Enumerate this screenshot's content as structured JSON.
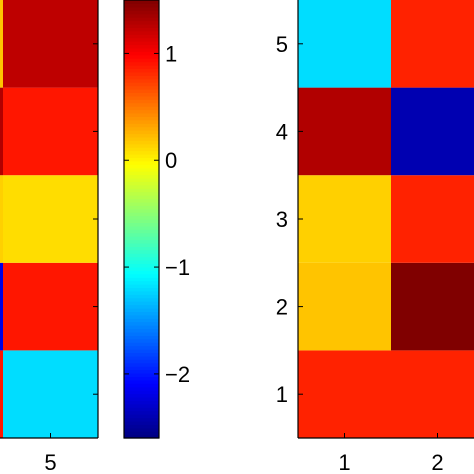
{
  "chart_data": [
    {
      "type": "heatmap",
      "description_of_view": "left heatmap, only the right-most column is visible",
      "x_tick_labels": [
        "5"
      ],
      "columns": [
        {
          "x": 5,
          "values_bottom_to_top": [
            -1.2,
            0.9,
            0.1,
            0.9,
            1.25
          ]
        }
      ],
      "left_sliver_values_bottom_to_top": [
        0.9,
        -2.2,
        0.15,
        1.3,
        0.2
      ],
      "grid": false
    },
    {
      "type": "colorbar",
      "colormap": "jet",
      "range": [
        -2.6,
        1.5
      ],
      "tick_values": [
        1,
        0,
        -1,
        -2
      ],
      "tick_labels": [
        "1",
        "0",
        "−1",
        "−2"
      ]
    },
    {
      "type": "heatmap",
      "description_of_view": "right heatmap, columns 1-2 visible (column 2 partially)",
      "x_tick_labels": [
        "1",
        "2"
      ],
      "y_tick_labels": [
        "1",
        "2",
        "3",
        "4",
        "5"
      ],
      "rows": [
        1,
        2,
        3,
        4,
        5
      ],
      "columns": [
        {
          "x": 1,
          "values_bottom_to_top": [
            0.85,
            0.2,
            0.15,
            1.3,
            -1.2
          ]
        },
        {
          "x": 2,
          "values_bottom_to_top": [
            0.85,
            1.55,
            0.85,
            -2.4,
            0.85
          ]
        }
      ],
      "grid": false
    }
  ]
}
